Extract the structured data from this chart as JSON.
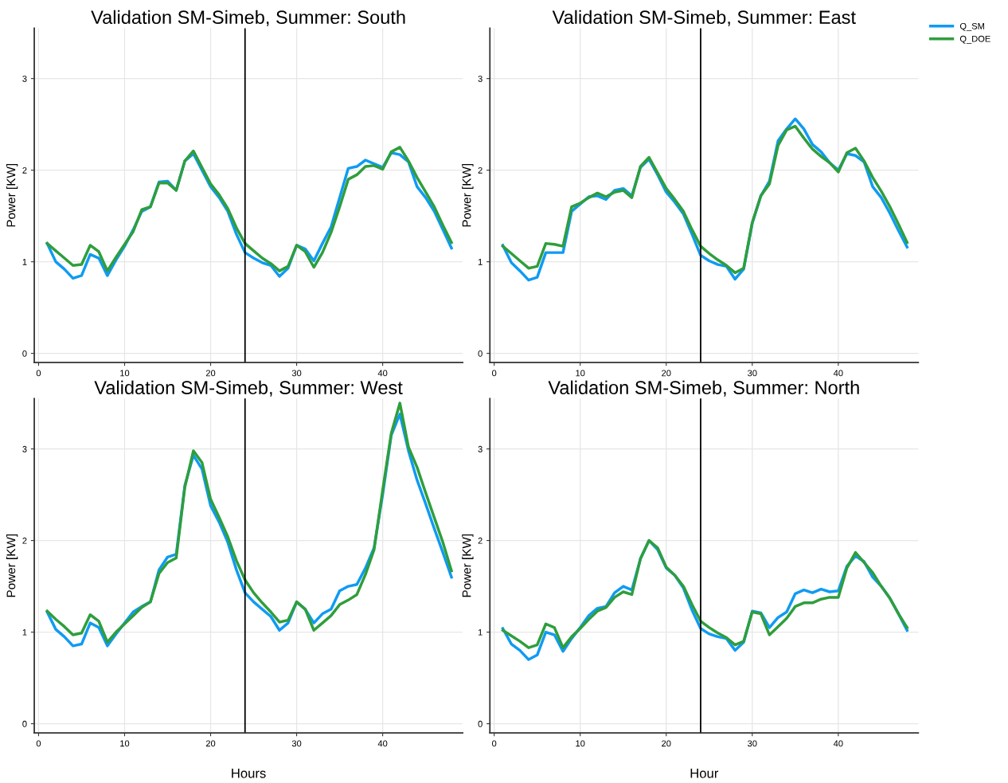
{
  "chart_data": [
    {
      "type": "line",
      "title": "Validation SM-Simeb, Summer: South",
      "ylabel": "Power [KW]",
      "x": [
        1,
        2,
        3,
        4,
        5,
        6,
        7,
        8,
        9,
        10,
        11,
        12,
        13,
        14,
        15,
        16,
        17,
        18,
        19,
        20,
        21,
        22,
        23,
        24,
        25,
        26,
        27,
        28,
        29,
        30,
        31,
        32,
        33,
        34,
        35,
        36,
        37,
        38,
        39,
        40,
        41,
        42,
        43,
        44,
        45,
        46,
        47,
        48
      ],
      "xlim": [
        -0.5,
        49.3
      ],
      "xticks": [
        0,
        10,
        20,
        30,
        40
      ],
      "ylim": [
        -0.1,
        3.55
      ],
      "yticks": [
        0,
        1,
        2,
        3
      ],
      "grid": true,
      "legend": false,
      "ref_lines": [
        {
          "axis": "x",
          "value": 24,
          "color": "#000000"
        }
      ],
      "series": [
        {
          "color": "#0f9bf2",
          "values": [
            1.2,
            1.0,
            0.92,
            0.82,
            0.85,
            1.08,
            1.04,
            0.85,
            1.02,
            1.17,
            1.35,
            1.55,
            1.6,
            1.87,
            1.88,
            1.78,
            2.1,
            2.18,
            2.0,
            1.82,
            1.7,
            1.55,
            1.3,
            1.1,
            1.04,
            0.99,
            0.96,
            0.84,
            0.93,
            1.18,
            1.14,
            1.01,
            1.2,
            1.38,
            1.7,
            2.02,
            2.04,
            2.11,
            2.07,
            2.03,
            2.19,
            2.17,
            2.09,
            1.82,
            1.7,
            1.55,
            1.35,
            1.15
          ]
        },
        {
          "color": "#2f9e3c",
          "values": [
            1.2,
            1.12,
            1.04,
            0.96,
            0.97,
            1.18,
            1.11,
            0.9,
            1.05,
            1.19,
            1.33,
            1.57,
            1.6,
            1.86,
            1.86,
            1.78,
            2.1,
            2.21,
            2.03,
            1.85,
            1.73,
            1.58,
            1.37,
            1.2,
            1.12,
            1.04,
            0.98,
            0.9,
            0.95,
            1.18,
            1.11,
            0.94,
            1.1,
            1.32,
            1.6,
            1.9,
            1.95,
            2.04,
            2.05,
            2.01,
            2.2,
            2.25,
            2.1,
            1.92,
            1.76,
            1.6,
            1.4,
            1.21
          ]
        }
      ]
    },
    {
      "type": "line",
      "title": "Validation SM-Simeb, Summer: East",
      "ylabel": "Power [KW]",
      "x": [
        1,
        2,
        3,
        4,
        5,
        6,
        7,
        8,
        9,
        10,
        11,
        12,
        13,
        14,
        15,
        16,
        17,
        18,
        19,
        20,
        21,
        22,
        23,
        24,
        25,
        26,
        27,
        28,
        29,
        30,
        31,
        32,
        33,
        34,
        35,
        36,
        37,
        38,
        39,
        40,
        41,
        42,
        43,
        44,
        45,
        46,
        47,
        48
      ],
      "xlim": [
        -0.5,
        49.3
      ],
      "xticks": [
        0,
        10,
        20,
        30,
        40
      ],
      "ylim": [
        -0.1,
        3.55
      ],
      "yticks": [
        0,
        1,
        2,
        3
      ],
      "grid": true,
      "legend": "top right",
      "ref_lines": [
        {
          "axis": "x",
          "value": 24,
          "color": "#000000"
        }
      ],
      "series": [
        {
          "name": "Q_SM",
          "color": "#0f9bf2",
          "values": [
            1.18,
            0.99,
            0.9,
            0.8,
            0.83,
            1.1,
            1.1,
            1.1,
            1.55,
            1.63,
            1.71,
            1.72,
            1.68,
            1.78,
            1.8,
            1.72,
            2.03,
            2.12,
            1.95,
            1.76,
            1.65,
            1.52,
            1.3,
            1.07,
            1.01,
            0.97,
            0.95,
            0.81,
            0.92,
            1.42,
            1.72,
            1.88,
            2.32,
            2.45,
            2.56,
            2.45,
            2.28,
            2.2,
            2.08,
            2.0,
            2.18,
            2.16,
            2.09,
            1.82,
            1.7,
            1.53,
            1.34,
            1.16
          ]
        },
        {
          "name": "Q_DOE",
          "color": "#2f9e3c",
          "values": [
            1.17,
            1.09,
            1.01,
            0.93,
            0.95,
            1.2,
            1.19,
            1.17,
            1.6,
            1.64,
            1.7,
            1.75,
            1.71,
            1.76,
            1.78,
            1.7,
            2.04,
            2.14,
            1.97,
            1.8,
            1.68,
            1.55,
            1.35,
            1.17,
            1.09,
            1.02,
            0.96,
            0.88,
            0.93,
            1.43,
            1.72,
            1.85,
            2.27,
            2.44,
            2.48,
            2.35,
            2.23,
            2.15,
            2.08,
            1.98,
            2.19,
            2.24,
            2.1,
            1.92,
            1.77,
            1.6,
            1.41,
            1.21
          ]
        }
      ]
    },
    {
      "type": "line",
      "title": "Validation SM-Simeb, Summer: West",
      "xlabel": "Hours",
      "ylabel": "Power [KW]",
      "x": [
        1,
        2,
        3,
        4,
        5,
        6,
        7,
        8,
        9,
        10,
        11,
        12,
        13,
        14,
        15,
        16,
        17,
        18,
        19,
        20,
        21,
        22,
        23,
        24,
        25,
        26,
        27,
        28,
        29,
        30,
        31,
        32,
        33,
        34,
        35,
        36,
        37,
        38,
        39,
        40,
        41,
        42,
        43,
        44,
        45,
        46,
        47,
        48
      ],
      "xlim": [
        -0.5,
        49.3
      ],
      "xticks": [
        0,
        10,
        20,
        30,
        40
      ],
      "ylim": [
        -0.1,
        3.55
      ],
      "yticks": [
        0,
        1,
        2,
        3
      ],
      "grid": true,
      "legend": false,
      "ref_lines": [
        {
          "axis": "x",
          "value": 24,
          "color": "#000000"
        }
      ],
      "series": [
        {
          "color": "#0f9bf2",
          "values": [
            1.22,
            1.03,
            0.95,
            0.85,
            0.87,
            1.1,
            1.05,
            0.85,
            0.98,
            1.1,
            1.22,
            1.28,
            1.33,
            1.68,
            1.82,
            1.85,
            2.6,
            2.93,
            2.78,
            2.38,
            2.2,
            1.98,
            1.68,
            1.43,
            1.33,
            1.25,
            1.17,
            1.02,
            1.1,
            1.33,
            1.25,
            1.1,
            1.2,
            1.25,
            1.45,
            1.5,
            1.52,
            1.7,
            1.92,
            2.5,
            3.15,
            3.38,
            2.98,
            2.66,
            2.4,
            2.13,
            1.87,
            1.6
          ]
        },
        {
          "color": "#2f9e3c",
          "values": [
            1.23,
            1.14,
            1.06,
            0.97,
            0.99,
            1.19,
            1.12,
            0.89,
            1.0,
            1.09,
            1.18,
            1.27,
            1.33,
            1.64,
            1.76,
            1.81,
            2.58,
            2.98,
            2.85,
            2.45,
            2.25,
            2.04,
            1.78,
            1.57,
            1.43,
            1.32,
            1.22,
            1.11,
            1.13,
            1.33,
            1.25,
            1.02,
            1.1,
            1.18,
            1.3,
            1.35,
            1.41,
            1.63,
            1.9,
            2.55,
            3.17,
            3.5,
            3.02,
            2.8,
            2.52,
            2.25,
            1.98,
            1.67
          ]
        }
      ]
    },
    {
      "type": "line",
      "title": "Validation SM-Simeb, Summer: North",
      "xlabel": "Hour",
      "ylabel": "Power [KW]",
      "x": [
        1,
        2,
        3,
        4,
        5,
        6,
        7,
        8,
        9,
        10,
        11,
        12,
        13,
        14,
        15,
        16,
        17,
        18,
        19,
        20,
        21,
        22,
        23,
        24,
        25,
        26,
        27,
        28,
        29,
        30,
        31,
        32,
        33,
        34,
        35,
        36,
        37,
        38,
        39,
        40,
        41,
        42,
        43,
        44,
        45,
        46,
        47,
        48
      ],
      "xlim": [
        -0.5,
        49.3
      ],
      "xticks": [
        0,
        10,
        20,
        30,
        40
      ],
      "ylim": [
        -0.1,
        3.55
      ],
      "yticks": [
        0,
        1,
        2,
        3
      ],
      "grid": true,
      "legend": false,
      "ref_lines": [
        {
          "axis": "x",
          "value": 24,
          "color": "#000000"
        }
      ],
      "series": [
        {
          "color": "#0f9bf2",
          "values": [
            1.04,
            0.87,
            0.8,
            0.7,
            0.75,
            1.0,
            0.97,
            0.79,
            0.93,
            1.05,
            1.18,
            1.26,
            1.28,
            1.43,
            1.5,
            1.46,
            1.8,
            2.0,
            1.9,
            1.7,
            1.62,
            1.48,
            1.24,
            1.04,
            0.98,
            0.95,
            0.93,
            0.8,
            0.89,
            1.23,
            1.21,
            1.05,
            1.16,
            1.22,
            1.42,
            1.46,
            1.43,
            1.47,
            1.44,
            1.45,
            1.72,
            1.83,
            1.77,
            1.6,
            1.5,
            1.37,
            1.2,
            1.02
          ]
        },
        {
          "color": "#2f9e3c",
          "values": [
            1.02,
            0.96,
            0.9,
            0.83,
            0.86,
            1.09,
            1.05,
            0.83,
            0.95,
            1.04,
            1.14,
            1.23,
            1.27,
            1.38,
            1.44,
            1.41,
            1.8,
            2.0,
            1.92,
            1.71,
            1.62,
            1.5,
            1.3,
            1.12,
            1.05,
            0.99,
            0.94,
            0.86,
            0.9,
            1.22,
            1.2,
            0.97,
            1.06,
            1.15,
            1.28,
            1.32,
            1.32,
            1.36,
            1.38,
            1.38,
            1.7,
            1.87,
            1.76,
            1.65,
            1.5,
            1.37,
            1.2,
            1.05
          ]
        }
      ]
    }
  ]
}
